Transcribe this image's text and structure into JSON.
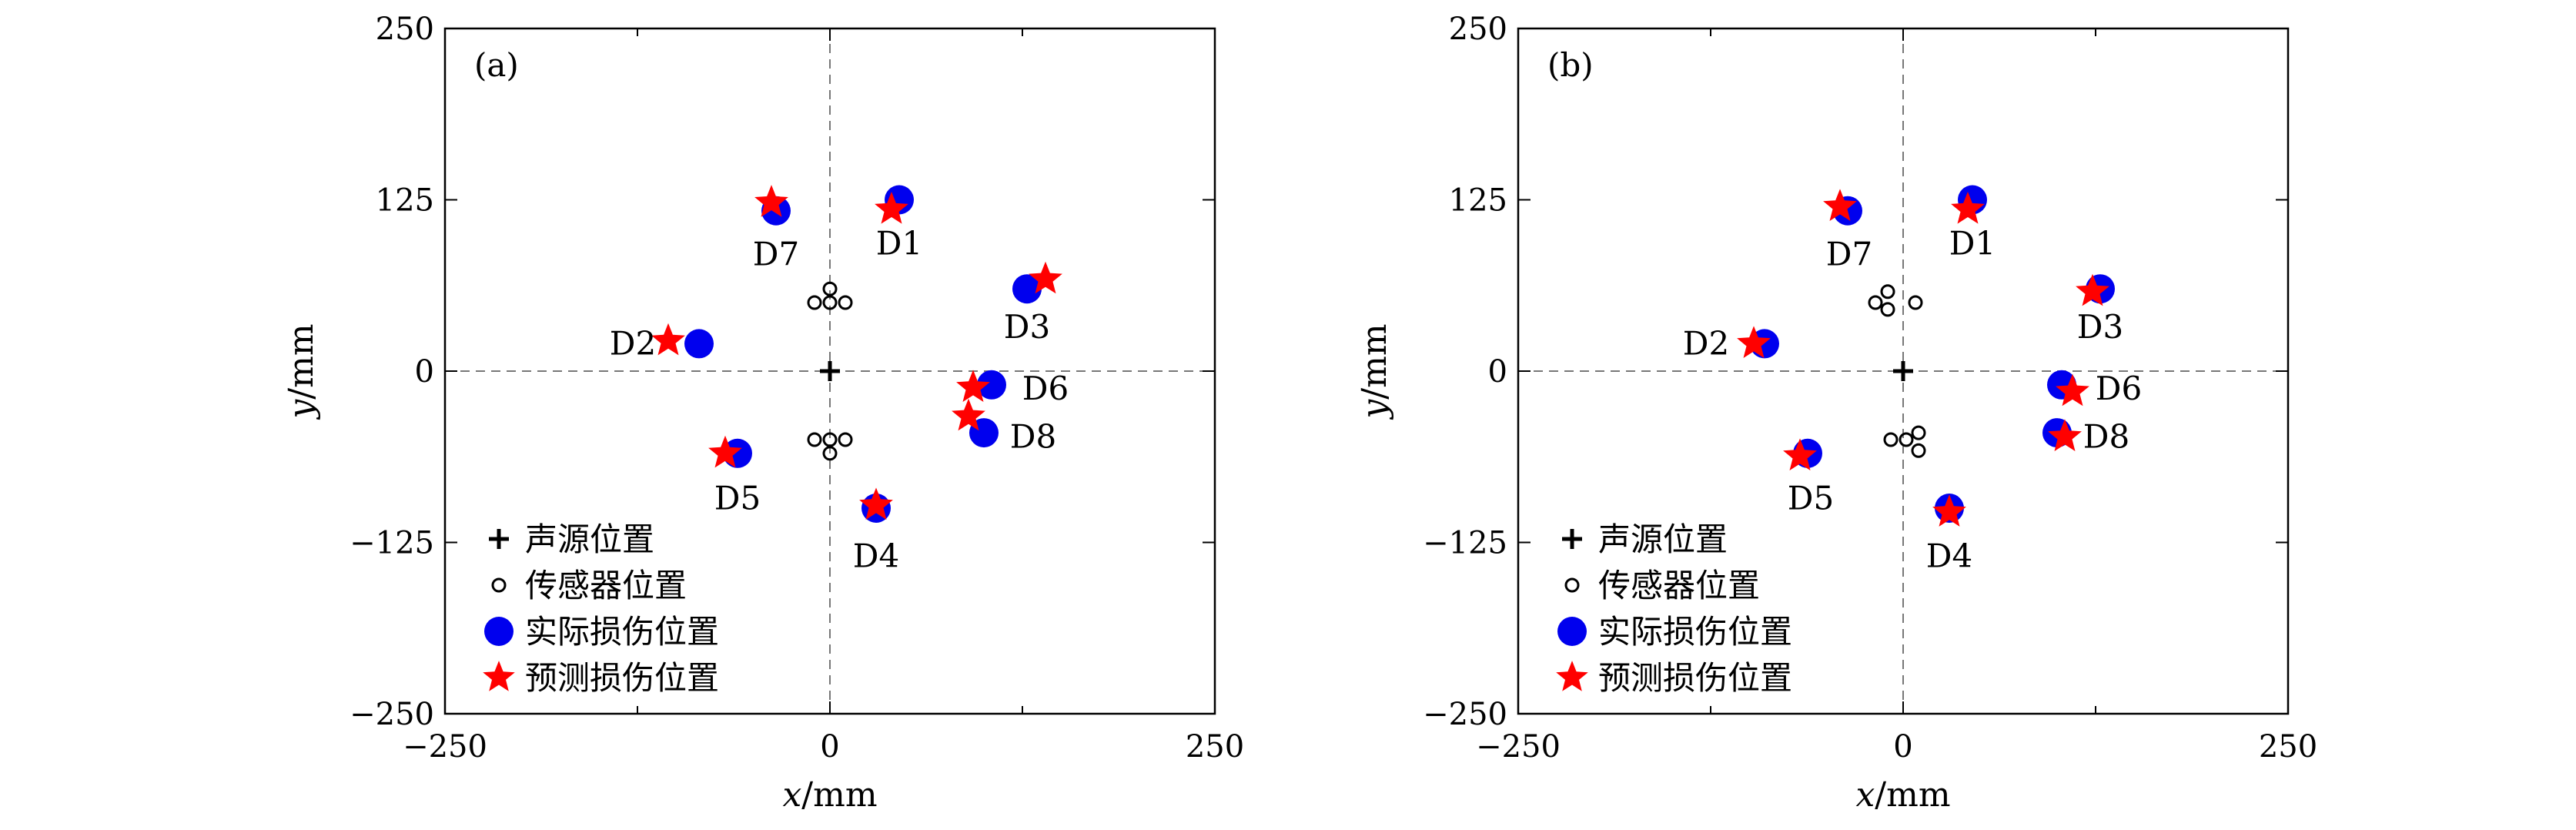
{
  "chart_data": [
    {
      "type": "scatter",
      "panel_label": "(a)",
      "xlabel": "x/mm",
      "ylabel": "y/mm",
      "xlim": [
        -250,
        250
      ],
      "ylim": [
        -250,
        250
      ],
      "x_ticks": [
        -250,
        0,
        250
      ],
      "y_ticks": [
        250,
        125,
        0,
        -125,
        -250
      ],
      "x_tick_labels": [
        "−250",
        "0",
        "250"
      ],
      "y_tick_labels": [
        "250",
        "125",
        "0",
        "−125",
        "−250"
      ],
      "grid": "dashed lines at x = 0 and y = 0",
      "legend_position": "bottom-left",
      "series": [
        {
          "name": "声源位置",
          "marker": "plus",
          "color": "#000000",
          "points": [
            [
              0,
              0
            ]
          ]
        },
        {
          "name": "传感器位置",
          "marker": "open-circle",
          "color": "#000000",
          "points": [
            [
              0,
              60
            ],
            [
              0,
              50
            ],
            [
              -10,
              50
            ],
            [
              10,
              50
            ],
            [
              0,
              -60
            ],
            [
              0,
              -50
            ],
            [
              -10,
              -50
            ],
            [
              10,
              -50
            ]
          ]
        },
        {
          "name": "实际损伤位置",
          "marker": "filled-circle",
          "color": "#0000ee",
          "points": [
            [
              45,
              125
            ],
            [
              -85,
              20
            ],
            [
              128,
              60
            ],
            [
              30,
              -100
            ],
            [
              -60,
              -60
            ],
            [
              105,
              -10
            ],
            [
              100,
              -45
            ],
            [
              -35,
              117
            ]
          ]
        },
        {
          "name": "预测损伤位置",
          "marker": "star",
          "color": "#ff0000",
          "points": [
            [
              40,
              118
            ],
            [
              -105,
              22
            ],
            [
              140,
              67
            ],
            [
              30,
              -98
            ],
            [
              -68,
              -60
            ],
            [
              93,
              -12
            ],
            [
              90,
              -33
            ],
            [
              -38,
              123
            ]
          ]
        }
      ],
      "annotations": [
        {
          "text": "D1",
          "x": 45,
          "y": 93
        },
        {
          "text": "D2",
          "x": -128,
          "y": 20
        },
        {
          "text": "D3",
          "x": 128,
          "y": 32
        },
        {
          "text": "D4",
          "x": 30,
          "y": -135
        },
        {
          "text": "D5",
          "x": -60,
          "y": -93
        },
        {
          "text": "D6",
          "x": 140,
          "y": -13
        },
        {
          "text": "D7",
          "x": -35,
          "y": 85
        },
        {
          "text": "D8",
          "x": 132,
          "y": -48
        }
      ]
    },
    {
      "type": "scatter",
      "panel_label": "(b)",
      "xlabel": "x/mm",
      "ylabel": "y/mm",
      "xlim": [
        -250,
        250
      ],
      "ylim": [
        -250,
        250
      ],
      "x_ticks": [
        -250,
        0,
        250
      ],
      "y_ticks": [
        250,
        125,
        0,
        -125,
        -250
      ],
      "x_tick_labels": [
        "−250",
        "0",
        "250"
      ],
      "y_tick_labels": [
        "250",
        "125",
        "0",
        "−125",
        "−250"
      ],
      "grid": "dashed lines at x = 0 and y = 0",
      "legend_position": "bottom-left",
      "series": [
        {
          "name": "声源位置",
          "marker": "plus",
          "color": "#000000",
          "points": [
            [
              0,
              0
            ]
          ]
        },
        {
          "name": "传感器位置",
          "marker": "open-circle",
          "color": "#000000",
          "points": [
            [
              -10,
              58
            ],
            [
              -10,
              45
            ],
            [
              -18,
              50
            ],
            [
              8,
              50
            ],
            [
              10,
              -58
            ],
            [
              10,
              -45
            ],
            [
              -8,
              -50
            ],
            [
              2,
              -50
            ]
          ]
        },
        {
          "name": "实际损伤位置",
          "marker": "filled-circle",
          "color": "#0000ee",
          "points": [
            [
              45,
              125
            ],
            [
              -90,
              20
            ],
            [
              128,
              60
            ],
            [
              30,
              -100
            ],
            [
              -62,
              -60
            ],
            [
              103,
              -10
            ],
            [
              100,
              -45
            ],
            [
              -36,
              117
            ]
          ]
        },
        {
          "name": "预测损伤位置",
          "marker": "star",
          "color": "#ff0000",
          "points": [
            [
              42,
              118
            ],
            [
              -97,
              20
            ],
            [
              123,
              58
            ],
            [
              30,
              -103
            ],
            [
              -67,
              -62
            ],
            [
              110,
              -15
            ],
            [
              105,
              -48
            ],
            [
              -41,
              120
            ]
          ]
        }
      ],
      "annotations": [
        {
          "text": "D1",
          "x": 45,
          "y": 93
        },
        {
          "text": "D2",
          "x": -128,
          "y": 20
        },
        {
          "text": "D3",
          "x": 128,
          "y": 32
        },
        {
          "text": "D4",
          "x": 30,
          "y": -135
        },
        {
          "text": "D5",
          "x": -60,
          "y": -93
        },
        {
          "text": "D6",
          "x": 140,
          "y": -13
        },
        {
          "text": "D7",
          "x": -35,
          "y": 85
        },
        {
          "text": "D8",
          "x": 132,
          "y": -48
        }
      ]
    }
  ]
}
